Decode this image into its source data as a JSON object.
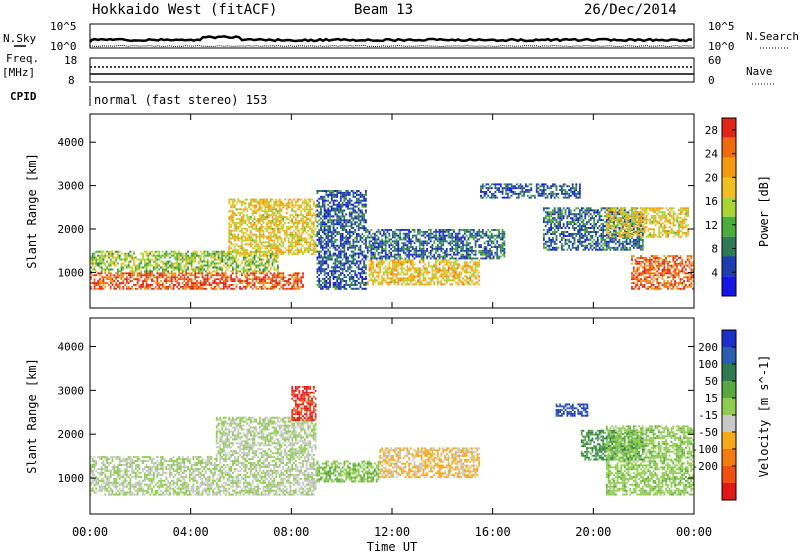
{
  "header": {
    "radar": "Hokkaido West (fitACF)",
    "beam": "Beam 13",
    "date": "26/Dec/2014"
  },
  "top_panel": {
    "nsky_label": "N.Sky",
    "nsky_ticks": [
      "10^5",
      "10^0"
    ],
    "nsearch_label": "N.Search",
    "nsearch_ticks": [
      "10^5",
      "10^0"
    ],
    "freq_label": "Freq.",
    "freq_unit": "[MHz]",
    "freq_ticks": [
      "18",
      "8"
    ],
    "nave_label": "Nave",
    "nave_ticks": [
      "60",
      "0"
    ],
    "cpid_label": "CPID",
    "cpid_text": "normal (fast stereo) 153"
  },
  "colors": {
    "power_scale": [
      "#1515e6",
      "#1e3cb0",
      "#2e7a58",
      "#4cad3c",
      "#a8d436",
      "#f0c020",
      "#f59a10",
      "#f06a10",
      "#e02418"
    ],
    "velocity_scale": [
      "#1c30c8",
      "#2a5cb0",
      "#2e7a50",
      "#58a840",
      "#90cc50",
      "#c8c8c8",
      "#f5a818",
      "#f57b10",
      "#f05010",
      "#e01818"
    ]
  },
  "chart_data": [
    {
      "type": "heatmap",
      "panel": "power",
      "ylabel": "Slant Range [km]",
      "xlabel": "Time UT",
      "x_ticks": [
        "00:00",
        "04:00",
        "08:00",
        "12:00",
        "16:00",
        "20:00",
        "00:00"
      ],
      "y_ticks": [
        "1000",
        "2000",
        "3000",
        "4000"
      ],
      "ylim": [
        180,
        4650
      ],
      "xlim_hours": [
        0,
        24
      ],
      "colorbar_label": "Power [dB]",
      "colorbar_ticks": [
        "4",
        "8",
        "12",
        "16",
        "20",
        "24",
        "28"
      ],
      "colorbar_range": [
        0,
        30
      ],
      "regions": [
        {
          "t0": 0,
          "t1": 8.5,
          "r0": 600,
          "r1": 1000,
          "value": 26
        },
        {
          "t0": 0,
          "t1": 7.5,
          "r0": 1000,
          "r1": 1500,
          "value": 14
        },
        {
          "t0": 5.5,
          "t1": 9.0,
          "r0": 1400,
          "r1": 2700,
          "value": 18
        },
        {
          "t0": 9.0,
          "t1": 11.0,
          "r0": 600,
          "r1": 2900,
          "value": 6
        },
        {
          "t0": 11.0,
          "t1": 15.5,
          "r0": 700,
          "r1": 1300,
          "value": 19
        },
        {
          "t0": 11.0,
          "t1": 16.5,
          "r0": 1300,
          "r1": 2000,
          "value": 7
        },
        {
          "t0": 15.5,
          "t1": 19.5,
          "r0": 2700,
          "r1": 3050,
          "value": 6
        },
        {
          "t0": 18.0,
          "t1": 22.0,
          "r0": 1500,
          "r1": 2500,
          "value": 7
        },
        {
          "t0": 20.5,
          "t1": 23.8,
          "r0": 1800,
          "r1": 2500,
          "value": 18
        },
        {
          "t0": 21.5,
          "t1": 24.0,
          "r0": 600,
          "r1": 1400,
          "value": 26
        }
      ]
    },
    {
      "type": "heatmap",
      "panel": "velocity",
      "ylabel": "Slant Range [km]",
      "xlabel": "Time UT",
      "x_ticks": [
        "00:00",
        "04:00",
        "08:00",
        "12:00",
        "16:00",
        "20:00",
        "00:00"
      ],
      "y_ticks": [
        "1000",
        "2000",
        "3000",
        "4000"
      ],
      "ylim": [
        180,
        4650
      ],
      "xlim_hours": [
        0,
        24
      ],
      "colorbar_label": "Velocity [m s^-1]",
      "colorbar_ticks": [
        "200",
        "100",
        "50",
        "15",
        "-15",
        "-50",
        "-100",
        "-200"
      ],
      "colorbar_range": [
        -250,
        250
      ],
      "regions": [
        {
          "t0": 0,
          "t1": 9.0,
          "r0": 600,
          "r1": 1500,
          "value": 0
        },
        {
          "t0": 5.0,
          "t1": 9.0,
          "r0": 1500,
          "r1": 2400,
          "value": 0
        },
        {
          "t0": 8.0,
          "t1": 9.0,
          "r0": 2300,
          "r1": 3100,
          "value": -200
        },
        {
          "t0": 9.0,
          "t1": 11.5,
          "r0": 900,
          "r1": 1400,
          "value": 40
        },
        {
          "t0": 11.5,
          "t1": 15.5,
          "r0": 1000,
          "r1": 1700,
          "value": -60
        },
        {
          "t0": 18.5,
          "t1": 19.8,
          "r0": 2400,
          "r1": 2700,
          "value": 200
        },
        {
          "t0": 19.5,
          "t1": 22.0,
          "r0": 1400,
          "r1": 2100,
          "value": 100
        },
        {
          "t0": 20.5,
          "t1": 24.0,
          "r0": 600,
          "r1": 2200,
          "value": 30
        }
      ]
    }
  ]
}
